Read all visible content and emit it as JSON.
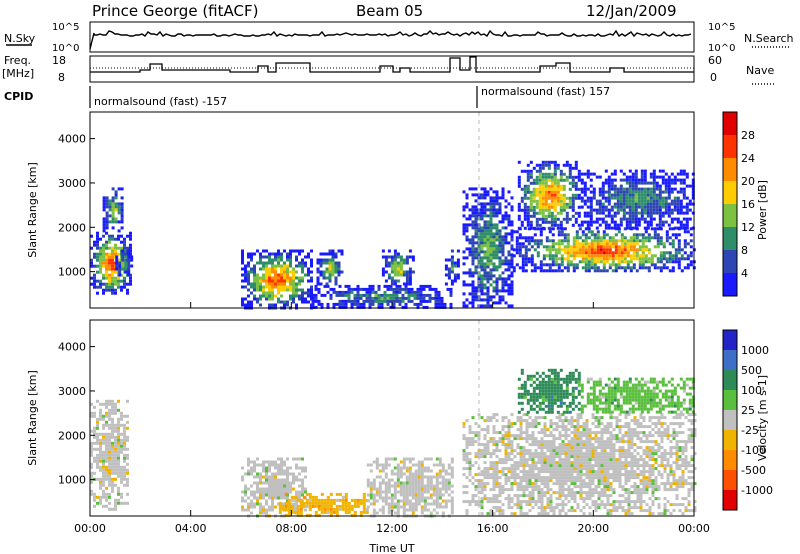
{
  "header": {
    "station": "Prince George (fitACF)",
    "beam": "Beam 05",
    "date": "12/Jan/2009"
  },
  "top_panels": {
    "nsky_label": "N.Sky",
    "nsearch_label": "N.Search",
    "nsky_ticks": [
      "10^5",
      "10^0"
    ],
    "nsearch_ticks": [
      "10^5",
      "10^0"
    ],
    "freq_label_1": "Freq.",
    "freq_label_2": "[MHz]",
    "freq_ticks": [
      "18",
      "8"
    ],
    "nave_label": "Nave",
    "nave_ticks": [
      "60",
      "0"
    ],
    "cpid_label": "CPID",
    "cpid_segments": [
      {
        "label": "normalsound (fast) -157",
        "start_hour": 0,
        "end_hour": 15.0
      },
      {
        "label": "normalsound (fast) 157",
        "start_hour": 15.0,
        "end_hour": 24
      }
    ]
  },
  "chart_data": [
    {
      "type": "heatmap",
      "name": "power",
      "xlabel": "",
      "ylabel": "Slant Range [km]",
      "ylim": [
        180,
        4600
      ],
      "yticks": [
        "1000",
        "2000",
        "3000",
        "4000"
      ],
      "colorbar_label": "Power [dB]",
      "colorbar_ticks": [
        "4",
        "8",
        "12",
        "16",
        "20",
        "24",
        "28"
      ],
      "colors": [
        "#1a1aff",
        "#2e46b4",
        "#2f8e6a",
        "#7cc142",
        "#ffcc00",
        "#ff8c00",
        "#ff3300",
        "#e00000"
      ],
      "regions": [
        {
          "x": [
            0.0,
            1.6
          ],
          "y": [
            500,
            1900
          ],
          "peak": 28
        },
        {
          "x": [
            0.5,
            1.3
          ],
          "y": [
            1900,
            2900
          ],
          "peak": 16
        },
        {
          "x": [
            1.0,
            1.6
          ],
          "y": [
            900,
            1500
          ],
          "peak": 14
        },
        {
          "x": [
            6.0,
            8.8
          ],
          "y": [
            200,
            1500
          ],
          "peak": 28
        },
        {
          "x": [
            8.8,
            14.4
          ],
          "y": [
            200,
            700
          ],
          "peak": 12
        },
        {
          "x": [
            9.0,
            10.0
          ],
          "y": [
            700,
            1500
          ],
          "peak": 18
        },
        {
          "x": [
            11.6,
            12.8
          ],
          "y": [
            700,
            1500
          ],
          "peak": 18
        },
        {
          "x": [
            14.1,
            14.6
          ],
          "y": [
            700,
            1500
          ],
          "peak": 10
        },
        {
          "x": [
            14.8,
            16.8
          ],
          "y": [
            200,
            2900
          ],
          "peak": 14
        },
        {
          "x": [
            16.8,
            24.0
          ],
          "y": [
            1000,
            2000
          ],
          "peak": 28
        },
        {
          "x": [
            17.0,
            19.5
          ],
          "y": [
            2000,
            3500
          ],
          "peak": 26
        },
        {
          "x": [
            19.5,
            24.0
          ],
          "y": [
            2000,
            3300
          ],
          "peak": 12
        }
      ]
    },
    {
      "type": "heatmap",
      "name": "velocity",
      "xlabel": "Time UT",
      "ylabel": "Slant Range [km]",
      "ylim": [
        180,
        4600
      ],
      "yticks": [
        "1000",
        "2000",
        "3000",
        "4000"
      ],
      "xticks": [
        "00:00",
        "04:00",
        "08:00",
        "12:00",
        "16:00",
        "20:00",
        "00:00"
      ],
      "xlim_hours": [
        0,
        24
      ],
      "colorbar_label": "Velocity [m s-1]",
      "colorbar_ticks": [
        "1000",
        "500",
        "100",
        "25",
        "-25",
        "-100",
        "-500",
        "-1000"
      ],
      "colors": [
        "#2323c8",
        "#3e6fc8",
        "#2e8b57",
        "#5abf3c",
        "#c0c0c0",
        "#f0b400",
        "#ff8c00",
        "#ff5000",
        "#e00000"
      ],
      "regions": [
        {
          "x": [
            0.0,
            1.5
          ],
          "y": [
            300,
            2800
          ],
          "value": 0
        },
        {
          "x": [
            6.0,
            8.6
          ],
          "y": [
            200,
            1500
          ],
          "value": 0
        },
        {
          "x": [
            7.5,
            11.0
          ],
          "y": [
            200,
            700
          ],
          "value": -100
        },
        {
          "x": [
            11.0,
            14.4
          ],
          "y": [
            200,
            1500
          ],
          "value": 0
        },
        {
          "x": [
            14.8,
            24.0
          ],
          "y": [
            200,
            2500
          ],
          "value": 0
        },
        {
          "x": [
            17.0,
            19.5
          ],
          "y": [
            2500,
            3500
          ],
          "value": 300
        },
        {
          "x": [
            19.5,
            24.0
          ],
          "y": [
            2500,
            3300
          ],
          "value": 150
        }
      ]
    }
  ]
}
